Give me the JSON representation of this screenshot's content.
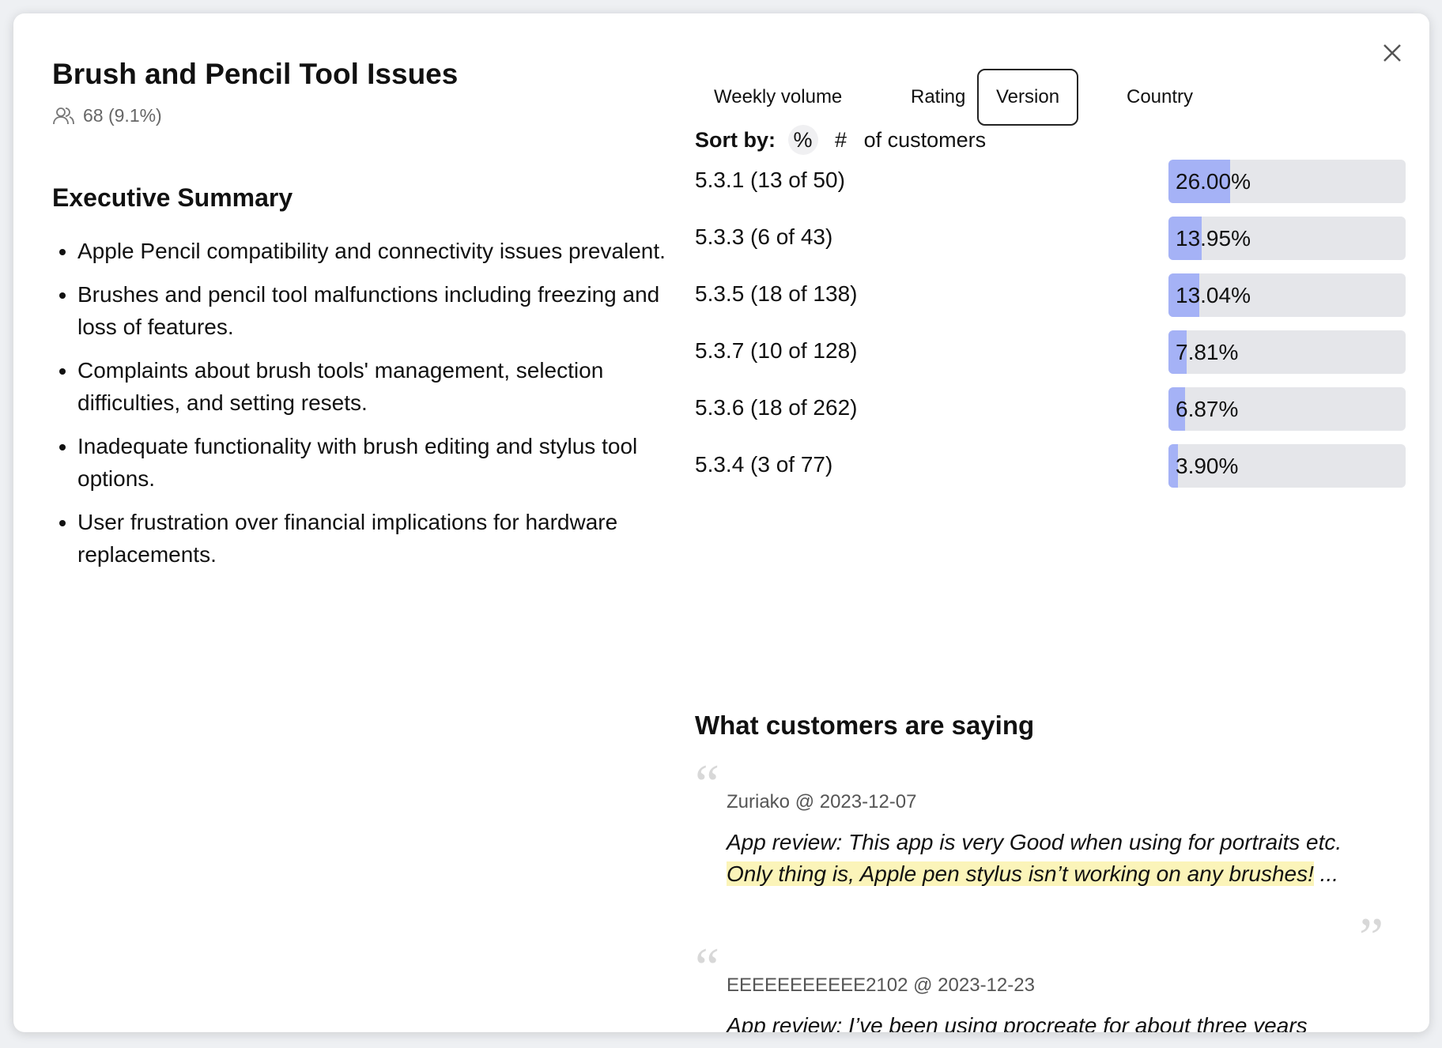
{
  "header": {
    "title": "Brush and Pencil Tool Issues",
    "count": "68 (9.1%)"
  },
  "summary": {
    "heading": "Executive Summary",
    "bullets": [
      "Apple Pencil compatibility and connectivity issues prevalent.",
      "Brushes and pencil tool malfunctions including freezing and loss of features.",
      "Complaints about brush tools' management, selection difficulties, and setting resets.",
      "Inadequate functionality with brush editing and stylus tool options.",
      "User frustration over financial implications for hardware replacements."
    ]
  },
  "tabs": {
    "items": [
      "Weekly volume",
      "Rating",
      "Version",
      "Country"
    ],
    "selected": 2
  },
  "sort": {
    "label": "Sort by:",
    "options": [
      "%",
      "#"
    ],
    "suffix": "of customers"
  },
  "versions": {
    "max": 100,
    "rows": [
      {
        "label": "5.3.1 (13 of 50)",
        "value": 26.0,
        "value_label": "26.00%"
      },
      {
        "label": "5.3.3 (6 of 43)",
        "value": 13.95,
        "value_label": "13.95%"
      },
      {
        "label": "5.3.5 (18 of 138)",
        "value": 13.04,
        "value_label": "13.04%"
      },
      {
        "label": "5.3.7 (10 of 128)",
        "value": 7.81,
        "value_label": "7.81%"
      },
      {
        "label": "5.3.6 (18 of 262)",
        "value": 6.87,
        "value_label": "6.87%"
      },
      {
        "label": "5.3.4 (3 of 77)",
        "value": 3.9,
        "value_label": "3.90%"
      }
    ]
  },
  "reviews": {
    "heading": "What customers are saying",
    "items": [
      {
        "author": "Zuriako @ 2023-12-07",
        "segments": [
          {
            "text": "App review: This app is very Good when using for portraits etc. ",
            "highlight": false
          },
          {
            "text": "Only thing is, Apple pen stylus isn’t working on any brushes!",
            "highlight": true
          },
          {
            "text": " ...",
            "highlight": false
          }
        ]
      },
      {
        "author": "EEEEEEEEEEE2102 @ 2023-12-23",
        "segments": [
          {
            "text": "App review: I’ve been using procreate for about three years",
            "highlight": false
          }
        ]
      }
    ]
  }
}
